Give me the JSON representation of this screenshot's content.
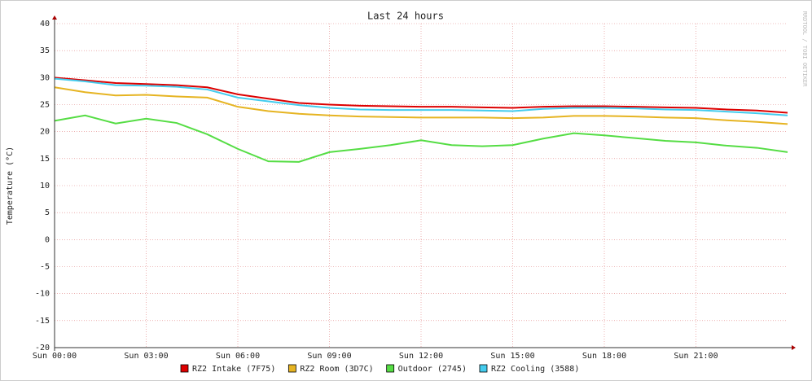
{
  "chart_data": {
    "type": "line",
    "title": "Last 24 hours",
    "y_label": "Temperature (°C)",
    "watermark": "RRDTOOL / TOBI OETIKER",
    "x": [
      0,
      1,
      2,
      3,
      4,
      5,
      6,
      7,
      8,
      9,
      10,
      11,
      12,
      13,
      14,
      15,
      16,
      17,
      18,
      19,
      20,
      21,
      22,
      23,
      24
    ],
    "xlim": [
      0,
      24
    ],
    "xticks": [
      {
        "value": 0,
        "label": "Sun 00:00"
      },
      {
        "value": 3,
        "label": "Sun 03:00"
      },
      {
        "value": 6,
        "label": "Sun 06:00"
      },
      {
        "value": 9,
        "label": "Sun 09:00"
      },
      {
        "value": 12,
        "label": "Sun 12:00"
      },
      {
        "value": 15,
        "label": "Sun 15:00"
      },
      {
        "value": 18,
        "label": "Sun 18:00"
      },
      {
        "value": 21,
        "label": "Sun 21:00"
      }
    ],
    "ylim": [
      -20,
      40
    ],
    "yticks": [
      -20,
      -15,
      -10,
      -5,
      0,
      5,
      10,
      15,
      20,
      25,
      30,
      35,
      40
    ],
    "grid": true,
    "legend": "bottom",
    "series": [
      {
        "name": "RZ2 Intake (7F75)",
        "color": "#dd0000",
        "values": [
          30,
          29.5,
          29,
          28.8,
          28.6,
          28.2,
          26.9,
          26.1,
          25.3,
          25,
          24.8,
          24.7,
          24.6,
          24.6,
          24.5,
          24.4,
          24.6,
          24.7,
          24.7,
          24.6,
          24.5,
          24.4,
          24.1,
          23.9,
          23.5
        ]
      },
      {
        "name": "RZ2 Room (3D7C)",
        "color": "#e6b422",
        "values": [
          28.2,
          27.3,
          26.7,
          26.8,
          26.5,
          26.3,
          24.6,
          23.8,
          23.3,
          23,
          22.8,
          22.7,
          22.6,
          22.6,
          22.6,
          22.5,
          22.6,
          22.9,
          22.9,
          22.8,
          22.6,
          22.5,
          22.1,
          21.8,
          21.4
        ]
      },
      {
        "name": "Outdoor (2745)",
        "color": "#55dd44",
        "values": [
          22,
          23,
          21.5,
          22.4,
          21.6,
          19.5,
          16.8,
          14.5,
          14.4,
          16.2,
          16.8,
          17.5,
          18.4,
          17.5,
          17.3,
          17.5,
          18.7,
          19.7,
          19.3,
          18.8,
          18.3,
          18,
          17.4,
          17,
          16.2
        ]
      },
      {
        "name": "RZ2 Cooling (3588)",
        "color": "#44ccee",
        "values": [
          29.8,
          29.3,
          28.6,
          28.5,
          28.3,
          27.8,
          26.3,
          25.6,
          24.9,
          24.4,
          24.1,
          24,
          24,
          24,
          23.9,
          23.8,
          24.2,
          24.4,
          24.4,
          24.3,
          24.1,
          24,
          23.7,
          23.4,
          23
        ]
      }
    ]
  }
}
